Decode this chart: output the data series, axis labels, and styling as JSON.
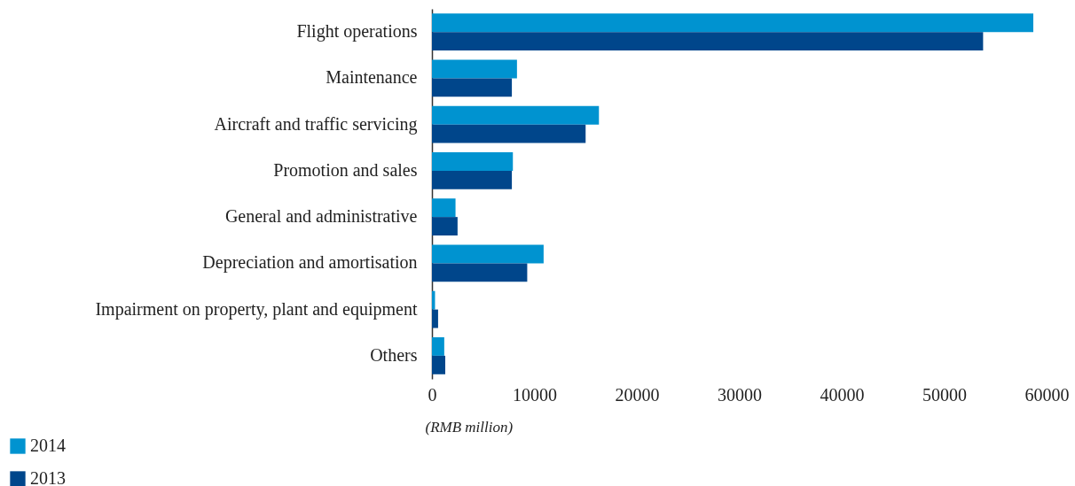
{
  "chart_data": {
    "type": "bar",
    "orientation": "horizontal",
    "xlabel": "(RMB million)",
    "categories": [
      "Flight operations",
      "Maintenance",
      "Aircraft and traffic servicing",
      "Promotion and sales",
      "General and administrative",
      "Depreciation and amortisation",
      "Impairment on property, plant and equipment",
      "Others"
    ],
    "series": [
      {
        "name": "2014",
        "color": "#0093d0",
        "values": [
          58700,
          8300,
          16300,
          7900,
          2300,
          10900,
          300,
          1200
        ]
      },
      {
        "name": "2013",
        "color": "#00468b",
        "values": [
          53800,
          7800,
          15000,
          7800,
          2500,
          9300,
          600,
          1300
        ]
      }
    ],
    "xlim": [
      0,
      60000
    ],
    "xticks": [
      0,
      10000,
      20000,
      30000,
      40000,
      50000,
      60000
    ],
    "grid": false,
    "legend": "bottom left"
  }
}
